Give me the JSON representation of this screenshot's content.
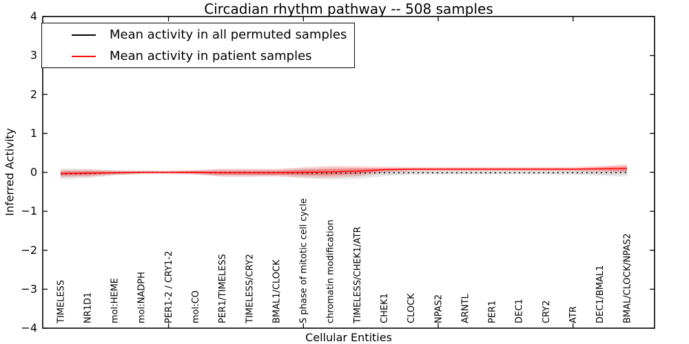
{
  "figure": {
    "title": "Circadian rhythm pathway -- 508 samples",
    "xlabel": "Cellular Entities",
    "ylabel": "Inferred Activity"
  },
  "legend": {
    "position": "upper-left",
    "entries": [
      {
        "label": "Mean activity in all permuted samples",
        "color": "#000000"
      },
      {
        "label": "Mean activity in patient samples",
        "color": "#ff0000"
      }
    ]
  },
  "chart_data": {
    "type": "line",
    "title": "Circadian rhythm pathway -- 508 samples",
    "xlabel": "Cellular Entities",
    "ylabel": "Inferred Activity",
    "ylim": [
      -4,
      4
    ],
    "yticks": [
      4,
      3,
      2,
      1,
      0,
      -1,
      -2,
      -3,
      -4
    ],
    "x_numeric_tick_indices": [
      4,
      9,
      14,
      19
    ],
    "grid": false,
    "legend_position": "upper-left",
    "categories": [
      "TIMELESS",
      "NR1D1",
      "mol:HEME",
      "mol:NADPH",
      "PER1-2 / CRY1-2",
      "mol:CO",
      "PER1/TIMELESS",
      "TIMELESS/CRY2",
      "BMAL1/CLOCK",
      "S phase of mitotic cell cycle",
      "chromatin modification",
      "TIMELESS/CHEK1/ATR",
      "CHEK1",
      "CLOCK",
      "NPAS2",
      "ARNTL",
      "PER1",
      "DEC1",
      "CRY2",
      "ATR",
      "DEC1/BMAL1",
      "BMAL/CLOCK/NPAS2"
    ],
    "series": [
      {
        "name": "Mean activity in all permuted samples",
        "color": "#000000",
        "line_style": "dotted",
        "band_color": "#999999",
        "values": [
          -0.04,
          -0.03,
          -0.01,
          0,
          0,
          0,
          -0.01,
          -0.01,
          -0.01,
          -0.02,
          -0.02,
          -0.02,
          -0.01,
          -0.01,
          -0.01,
          -0.01,
          -0.01,
          -0.01,
          -0.01,
          -0.01,
          -0.01,
          0
        ],
        "band_halfwidth": [
          0.14,
          0.12,
          0.07,
          0.04,
          0.03,
          0.05,
          0.1,
          0.1,
          0.09,
          0.13,
          0.16,
          0.15,
          0.09,
          0.05,
          0.04,
          0.04,
          0.04,
          0.04,
          0.04,
          0.05,
          0.08,
          0.11
        ]
      },
      {
        "name": "Mean activity in patient samples",
        "color": "#ff0000",
        "line_style": "solid",
        "band_color": "#ff3333",
        "values": [
          -0.03,
          -0.02,
          -0.01,
          0,
          0,
          0,
          -0.01,
          -0.01,
          -0.01,
          0.0,
          0.01,
          0.03,
          0.07,
          0.08,
          0.08,
          0.08,
          0.08,
          0.08,
          0.08,
          0.08,
          0.09,
          0.1
        ],
        "band_halfwidth": [
          0.05,
          0.05,
          0.03,
          0.02,
          0.02,
          0.03,
          0.05,
          0.05,
          0.05,
          0.07,
          0.08,
          0.07,
          0.04,
          0.03,
          0.03,
          0.03,
          0.03,
          0.03,
          0.03,
          0.03,
          0.04,
          0.06
        ]
      }
    ]
  }
}
